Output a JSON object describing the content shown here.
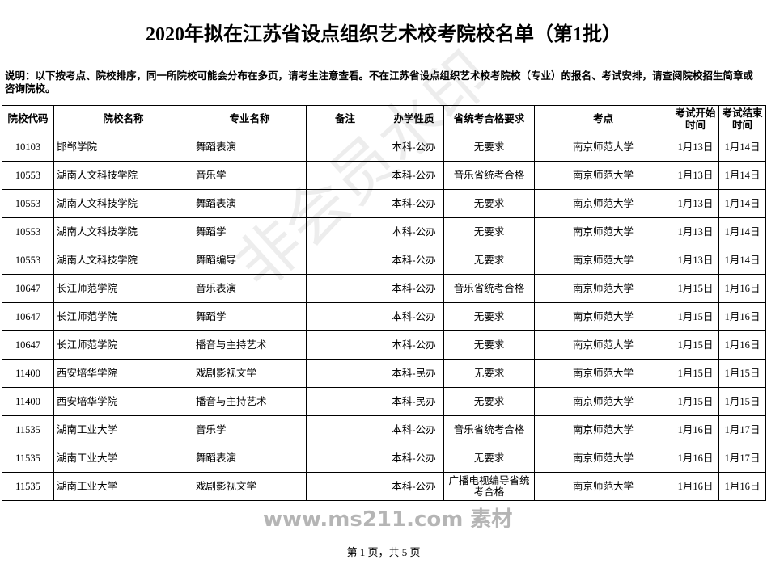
{
  "header": {
    "title": "2020年拟在江苏省设点组织艺术校考院校名单（第1批）",
    "note": "说明：以下按考点、院校排序，同一所院校可能会分布在多页，请考生注意查看。不在江苏省设点组织艺术校考院校（专业）的报名、考试安排，请查阅院校招生简章或咨询院校。"
  },
  "table": {
    "columns": [
      "院校代码",
      "院校名称",
      "专业名称",
      "备注",
      "办学性质",
      "省统考合格要求",
      "考点",
      "考试开始时间",
      "考试结束时间"
    ],
    "rows": [
      [
        "10103",
        "邯郸学院",
        "舞蹈表演",
        "",
        "本科-公办",
        "无要求",
        "南京师范大学",
        "1月13日",
        "1月14日"
      ],
      [
        "10553",
        "湖南人文科技学院",
        "音乐学",
        "",
        "本科-公办",
        "音乐省统考合格",
        "南京师范大学",
        "1月13日",
        "1月14日"
      ],
      [
        "10553",
        "湖南人文科技学院",
        "舞蹈表演",
        "",
        "本科-公办",
        "无要求",
        "南京师范大学",
        "1月13日",
        "1月14日"
      ],
      [
        "10553",
        "湖南人文科技学院",
        "舞蹈学",
        "",
        "本科-公办",
        "无要求",
        "南京师范大学",
        "1月13日",
        "1月14日"
      ],
      [
        "10553",
        "湖南人文科技学院",
        "舞蹈编导",
        "",
        "本科-公办",
        "无要求",
        "南京师范大学",
        "1月13日",
        "1月14日"
      ],
      [
        "10647",
        "长江师范学院",
        "音乐表演",
        "",
        "本科-公办",
        "音乐省统考合格",
        "南京师范大学",
        "1月15日",
        "1月16日"
      ],
      [
        "10647",
        "长江师范学院",
        "舞蹈学",
        "",
        "本科-公办",
        "无要求",
        "南京师范大学",
        "1月15日",
        "1月16日"
      ],
      [
        "10647",
        "长江师范学院",
        "播音与主持艺术",
        "",
        "本科-公办",
        "无要求",
        "南京师范大学",
        "1月15日",
        "1月16日"
      ],
      [
        "11400",
        "西安培华学院",
        "戏剧影视文学",
        "",
        "本科-民办",
        "无要求",
        "南京师范大学",
        "1月15日",
        "1月15日"
      ],
      [
        "11400",
        "西安培华学院",
        "播音与主持艺术",
        "",
        "本科-民办",
        "无要求",
        "南京师范大学",
        "1月15日",
        "1月15日"
      ],
      [
        "11535",
        "湖南工业大学",
        "音乐学",
        "",
        "本科-公办",
        "音乐省统考合格",
        "南京师范大学",
        "1月16日",
        "1月17日"
      ],
      [
        "11535",
        "湖南工业大学",
        "舞蹈表演",
        "",
        "本科-公办",
        "无要求",
        "南京师范大学",
        "1月16日",
        "1月17日"
      ],
      [
        "11535",
        "湖南工业大学",
        "戏剧影视文学",
        "",
        "本科-公办",
        "广播电视编导省统考合格",
        "南京师范大学",
        "1月16日",
        "1月16日"
      ]
    ]
  },
  "footer": "第 1 页，共 5 页",
  "watermarks": [
    "非会员水印",
    "www.ms211.com 素材"
  ]
}
